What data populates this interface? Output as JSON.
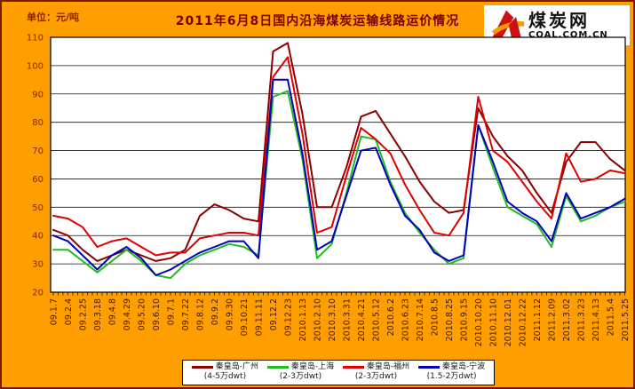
{
  "page": {
    "background_color": "#FF9E00",
    "border_color": "#7a1a00",
    "plot_background": "#FFFFFF"
  },
  "header": {
    "unit_label": "单位：元/吨",
    "title": "2011年6月8日国内沿海煤炭运输线路运价情况"
  },
  "logo": {
    "cn": "煤炭网",
    "en": "COAL.COM.CN",
    "icon": "red-orange-swoosh"
  },
  "chart_data": {
    "type": "line",
    "title": "2011年6月8日国内沿海煤炭运输线路运价情况",
    "unit": "元/吨",
    "ylim": [
      20,
      110
    ],
    "ytick_step": 10,
    "grid": "horizontal",
    "legend_position": "bottom",
    "x_labels": [
      "09.1.7",
      "09.2.4",
      "09.2.25",
      "09.3.18",
      "09.4.8",
      "09.4.29",
      "09.5.20",
      "09.6.10",
      "09.7.1",
      "09.7.22",
      "09.8.12",
      "09.9.2",
      "09.9.30",
      "09.10.21",
      "09.11.11",
      "09.12.2",
      "09.12.23",
      "2010.1.13",
      "2010.2.10",
      "2010.3.10",
      "2010.3.31",
      "2010.4.21",
      "2010.5.12",
      "2010.6.2",
      "2010.6.23",
      "2010.7.14",
      "2010.8.5",
      "2010.8.25",
      "2010.9.15",
      "2010.10.20",
      "2010.11.10",
      "2010.12.01",
      "2010.12.22",
      "2011.1.12",
      "2011.2.09",
      "2011.3.02",
      "2011.3.23",
      "2011.4.13",
      "2011.5.4",
      "2011.5.25"
    ],
    "series": [
      {
        "name": "秦皇岛-广州",
        "dwt": "(4-5万dwt)",
        "color": "#8B0000",
        "values": [
          42,
          40,
          35,
          31,
          33,
          35,
          33,
          31,
          32,
          35,
          47,
          51,
          49,
          46,
          45,
          105,
          108,
          83,
          50,
          50,
          64,
          82,
          84,
          76,
          68,
          59,
          52,
          48,
          49,
          85,
          75,
          68,
          63,
          55,
          48,
          66,
          73,
          73,
          67,
          63
        ]
      },
      {
        "name": "秦皇岛-上海",
        "dwt": "(2-3万dwt)",
        "color": "#22BB22",
        "values": [
          35,
          35,
          31,
          27,
          31,
          35,
          31,
          26,
          25,
          30,
          33,
          35,
          37,
          36,
          33,
          89,
          91,
          67,
          32,
          37,
          55,
          75,
          74,
          59,
          48,
          41,
          35,
          30,
          32,
          79,
          64,
          50,
          47,
          44,
          36,
          54,
          45,
          47,
          50,
          52
        ]
      },
      {
        "name": "秦皇岛-福州",
        "dwt": "(2-3万dwt)",
        "color": "#E00000",
        "values": [
          47,
          46,
          43,
          36,
          38,
          39,
          36,
          33,
          34,
          34,
          39,
          40,
          41,
          41,
          40,
          96,
          103,
          76,
          41,
          43,
          61,
          78,
          74,
          69,
          58,
          49,
          41,
          40,
          48,
          89,
          70,
          66,
          59,
          52,
          46,
          69,
          59,
          60,
          63,
          62
        ]
      },
      {
        "name": "秦皇岛-宁波",
        "dwt": "(1.5-2万dwt)",
        "color": "#0000BB",
        "values": [
          40,
          38,
          33,
          28,
          33,
          36,
          32,
          26,
          28,
          31,
          34,
          36,
          38,
          38,
          32,
          95,
          95,
          69,
          35,
          38,
          54,
          70,
          71,
          58,
          47,
          42,
          34,
          31,
          33,
          79,
          66,
          52,
          48,
          45,
          38,
          55,
          46,
          48,
          50,
          53
        ]
      }
    ]
  }
}
